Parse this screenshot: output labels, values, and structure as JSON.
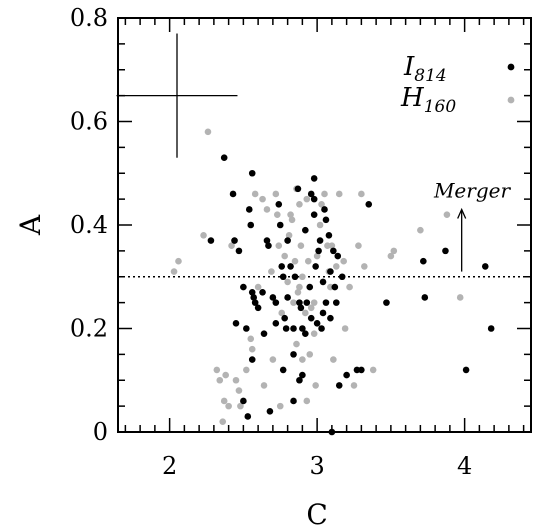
{
  "chart_data": {
    "type": "scatter",
    "xlabel": "C",
    "ylabel": "A",
    "xlim": [
      1.65,
      4.45
    ],
    "ylim": [
      0,
      0.8
    ],
    "x_ticks": [
      "2",
      "3",
      "4"
    ],
    "y_ticks": [
      "0",
      "0.2",
      "0.4",
      "0.6",
      "0.8"
    ],
    "grid": false,
    "legend_placement": "top-right",
    "threshold_line": {
      "y": 0.3,
      "style": "dotted"
    },
    "annotation": {
      "text": "Merger",
      "arrow_x": 3.98,
      "arrow_from_y": 0.31,
      "arrow_to_y": 0.43
    },
    "error_bar": {
      "x": 2.05,
      "y": 0.65,
      "x_err": 0.41,
      "y_err": 0.12
    },
    "series": [
      {
        "name": "I",
        "subscript": "814",
        "color": "#000000",
        "points": [
          [
            2.28,
            0.37
          ],
          [
            2.37,
            0.53
          ],
          [
            2.43,
            0.46
          ],
          [
            2.44,
            0.37
          ],
          [
            2.47,
            0.35
          ],
          [
            2.45,
            0.21
          ],
          [
            2.5,
            0.28
          ],
          [
            2.52,
            0.2
          ],
          [
            2.5,
            0.06
          ],
          [
            2.53,
            0.03
          ],
          [
            2.54,
            0.43
          ],
          [
            2.55,
            0.4
          ],
          [
            2.56,
            0.5
          ],
          [
            2.56,
            0.27
          ],
          [
            2.56,
            0.14
          ],
          [
            2.57,
            0.26
          ],
          [
            2.58,
            0.25
          ],
          [
            2.6,
            0.24
          ],
          [
            2.63,
            0.27
          ],
          [
            2.64,
            0.19
          ],
          [
            2.66,
            0.37
          ],
          [
            2.67,
            0.36
          ],
          [
            2.7,
            0.26
          ],
          [
            2.72,
            0.25
          ],
          [
            2.72,
            0.21
          ],
          [
            2.74,
            0.44
          ],
          [
            2.75,
            0.4
          ],
          [
            2.76,
            0.32
          ],
          [
            2.77,
            0.3
          ],
          [
            2.77,
            0.12
          ],
          [
            2.78,
            0.22
          ],
          [
            2.79,
            0.2
          ],
          [
            2.8,
            0.37
          ],
          [
            2.8,
            0.26
          ],
          [
            2.82,
            0.32
          ],
          [
            2.84,
            0.2
          ],
          [
            2.84,
            0.15
          ],
          [
            2.85,
            0.3
          ],
          [
            2.87,
            0.47
          ],
          [
            2.88,
            0.25
          ],
          [
            2.89,
            0.24
          ],
          [
            2.9,
            0.2
          ],
          [
            2.92,
            0.39
          ],
          [
            2.92,
            0.19
          ],
          [
            2.93,
            0.25
          ],
          [
            2.95,
            0.28
          ],
          [
            2.96,
            0.46
          ],
          [
            2.96,
            0.22
          ],
          [
            2.98,
            0.49
          ],
          [
            2.98,
            0.42
          ],
          [
            2.99,
            0.32
          ],
          [
            3.0,
            0.21
          ],
          [
            3.01,
            0.35
          ],
          [
            3.02,
            0.37
          ],
          [
            3.03,
            0.2
          ],
          [
            3.04,
            0.23
          ],
          [
            3.05,
            0.43
          ],
          [
            3.06,
            0.41
          ],
          [
            3.06,
            0.25
          ],
          [
            3.08,
            0.38
          ],
          [
            3.09,
            0.31
          ],
          [
            3.09,
            0.22
          ],
          [
            3.11,
            0.35
          ],
          [
            3.12,
            0.28
          ],
          [
            3.13,
            0.25
          ],
          [
            3.14,
            0.34
          ],
          [
            3.15,
            0.09
          ],
          [
            3.17,
            0.3
          ],
          [
            3.2,
            0.11
          ],
          [
            3.27,
            0.12
          ],
          [
            3.3,
            0.12
          ],
          [
            3.35,
            0.44
          ],
          [
            3.47,
            0.25
          ],
          [
            3.72,
            0.33
          ],
          [
            3.73,
            0.26
          ],
          [
            3.87,
            0.35
          ],
          [
            4.01,
            0.12
          ],
          [
            4.14,
            0.32
          ],
          [
            4.18,
            0.2
          ],
          [
            2.98,
            0.45
          ],
          [
            2.68,
            0.04
          ],
          [
            2.84,
            0.06
          ],
          [
            2.88,
            0.1
          ],
          [
            2.9,
            0.11
          ],
          [
            3.1,
            0.0
          ],
          [
            3.04,
            0.29
          ]
        ]
      },
      {
        "name": "H",
        "subscript": "160",
        "color": "#b3b3b3",
        "points": [
          [
            2.03,
            0.31
          ],
          [
            2.06,
            0.33
          ],
          [
            2.23,
            0.38
          ],
          [
            2.26,
            0.58
          ],
          [
            2.32,
            0.12
          ],
          [
            2.34,
            0.1
          ],
          [
            2.36,
            0.02
          ],
          [
            2.37,
            0.06
          ],
          [
            2.38,
            0.11
          ],
          [
            2.4,
            0.05
          ],
          [
            2.42,
            0.36
          ],
          [
            2.44,
            0.37
          ],
          [
            2.45,
            0.1
          ],
          [
            2.47,
            0.08
          ],
          [
            2.48,
            0.05
          ],
          [
            2.52,
            0.12
          ],
          [
            2.56,
            0.16
          ],
          [
            2.58,
            0.46
          ],
          [
            2.6,
            0.28
          ],
          [
            2.63,
            0.45
          ],
          [
            2.66,
            0.43
          ],
          [
            2.69,
            0.31
          ],
          [
            2.7,
            0.14
          ],
          [
            2.72,
            0.46
          ],
          [
            2.73,
            0.42
          ],
          [
            2.74,
            0.36
          ],
          [
            2.75,
            0.05
          ],
          [
            2.76,
            0.23
          ],
          [
            2.78,
            0.34
          ],
          [
            2.8,
            0.29
          ],
          [
            2.81,
            0.38
          ],
          [
            2.82,
            0.42
          ],
          [
            2.83,
            0.41
          ],
          [
            2.84,
            0.25
          ],
          [
            2.85,
            0.33
          ],
          [
            2.86,
            0.17
          ],
          [
            2.86,
            0.47
          ],
          [
            2.87,
            0.27
          ],
          [
            2.88,
            0.28
          ],
          [
            2.88,
            0.44
          ],
          [
            2.89,
            0.36
          ],
          [
            2.9,
            0.3
          ],
          [
            2.9,
            0.14
          ],
          [
            2.92,
            0.23
          ],
          [
            2.93,
            0.06
          ],
          [
            2.93,
            0.45
          ],
          [
            2.94,
            0.33
          ],
          [
            2.95,
            0.15
          ],
          [
            2.96,
            0.24
          ],
          [
            2.98,
            0.19
          ],
          [
            2.99,
            0.09
          ],
          [
            3.0,
            0.34
          ],
          [
            3.02,
            0.4
          ],
          [
            3.03,
            0.44
          ],
          [
            3.05,
            0.46
          ],
          [
            3.07,
            0.36
          ],
          [
            3.08,
            0.31
          ],
          [
            3.09,
            0.28
          ],
          [
            3.1,
            0.36
          ],
          [
            3.11,
            0.14
          ],
          [
            3.13,
            0.32
          ],
          [
            3.15,
            0.46
          ],
          [
            3.18,
            0.33
          ],
          [
            3.19,
            0.2
          ],
          [
            3.22,
            0.28
          ],
          [
            3.25,
            0.09
          ],
          [
            3.28,
            0.36
          ],
          [
            3.3,
            0.46
          ],
          [
            3.32,
            0.32
          ],
          [
            3.38,
            0.12
          ],
          [
            3.5,
            0.34
          ],
          [
            3.52,
            0.35
          ],
          [
            3.7,
            0.39
          ],
          [
            3.88,
            0.42
          ],
          [
            3.97,
            0.26
          ],
          [
            2.98,
            0.25
          ],
          [
            2.55,
            0.18
          ],
          [
            2.64,
            0.09
          ]
        ]
      }
    ]
  }
}
